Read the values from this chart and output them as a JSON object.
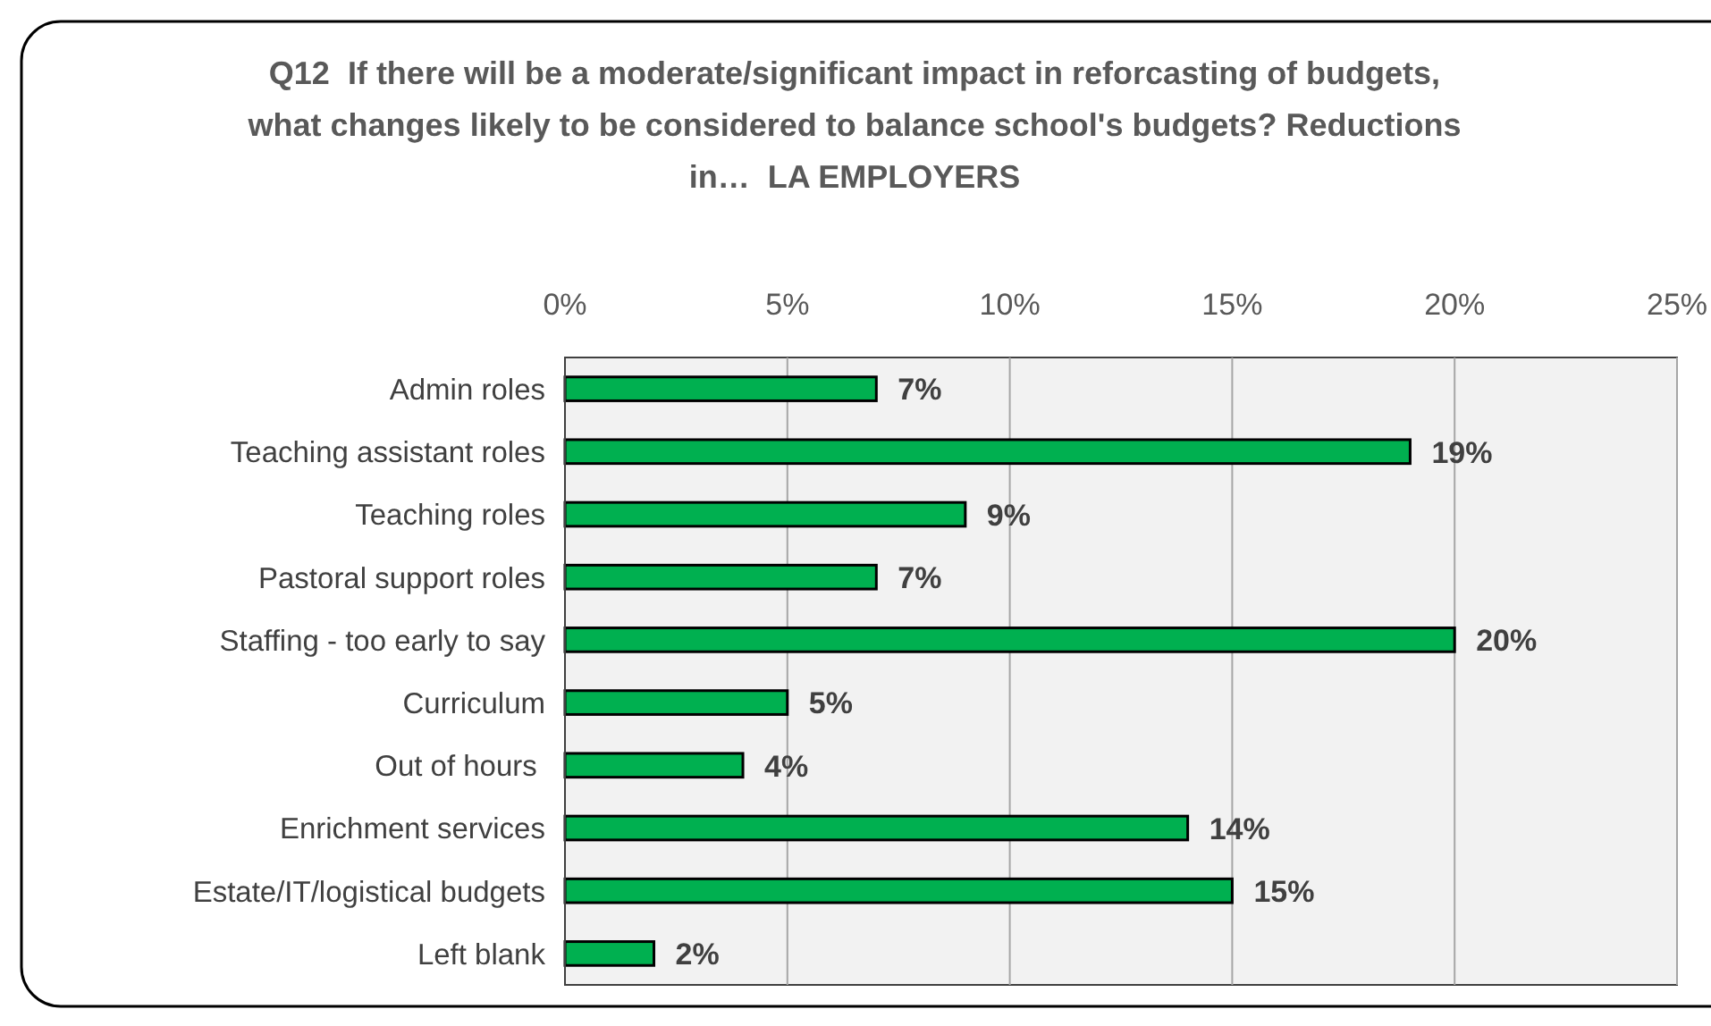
{
  "chart_data": {
    "type": "bar",
    "orientation": "horizontal",
    "title": "Q12  If there will be a moderate/significant impact in reforcasting of budgets, what changes likely to be considered to balance school's budgets? Reductions in…  LA EMPLOYERS",
    "categories": [
      "Admin roles",
      "Teaching assistant roles",
      "Teaching roles",
      "Pastoral support roles",
      "Staffing - too early to say",
      "Curriculum",
      "Out of hours ",
      "Enrichment services",
      "Estate/IT/logistical budgets",
      "Left blank"
    ],
    "values": [
      7,
      19,
      9,
      7,
      20,
      5,
      4,
      14,
      15,
      2
    ],
    "color": "#00b050",
    "value_labels": [
      "7%",
      "19%",
      "9%",
      "7%",
      "20%",
      "5%",
      "4%",
      "14%",
      "15%",
      "2%"
    ],
    "xlim": [
      0,
      25
    ],
    "xticks": [
      {
        "value": 0,
        "label": "0%"
      },
      {
        "value": 5,
        "label": "5%"
      },
      {
        "value": 10,
        "label": "10%"
      },
      {
        "value": 15,
        "label": "15%"
      },
      {
        "value": 20,
        "label": "20%"
      },
      {
        "value": 25,
        "label": "25%"
      }
    ],
    "grid": "x"
  }
}
